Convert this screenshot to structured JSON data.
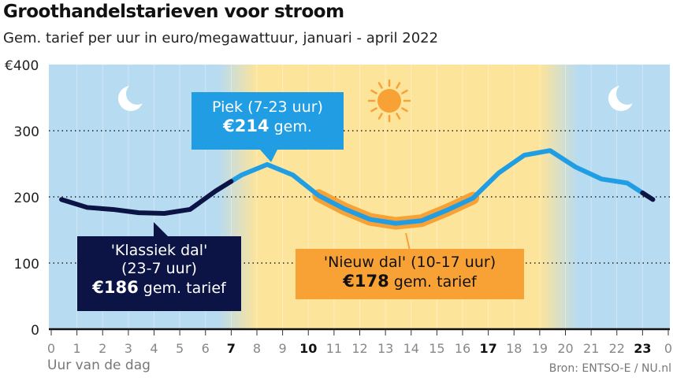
{
  "title": "Groothandelstarieven voor stroom",
  "subtitle": "Gem. tarief per uur in euro/megawattuur, januari - april 2022",
  "source": "Bron: ENTSO-E / NU.nl",
  "icons": {
    "night": "moon-icon",
    "day": "sun-icon"
  },
  "colors": {
    "night_bg": "#b7dbf1",
    "day_bg": "#fde49b",
    "peak": "#219ee3",
    "classic_off_peak": "#0c1446",
    "new_off_peak": "#f8a236"
  },
  "annotations": {
    "peak": {
      "line1": "Piek (7-23 uur)",
      "value": "€214",
      "suffix": "gem."
    },
    "classic": {
      "line1": "'Klassiek dal'",
      "line2": "(23-7 uur)",
      "value": "€186",
      "suffix": "gem. tarief"
    },
    "new": {
      "line1": "'Nieuw dal' (10-17 uur)",
      "value": "€178",
      "suffix": "gem. tarief"
    }
  },
  "chart_data": {
    "type": "line",
    "xlabel": "Uur van de dag",
    "ylabel": "",
    "ylim": [
      0,
      400
    ],
    "xlim": [
      0,
      24
    ],
    "yticks": [
      "0",
      "100",
      "200",
      "300",
      "€400"
    ],
    "xticks": [
      "0",
      "1",
      "2",
      "3",
      "4",
      "5",
      "6",
      "7",
      "8",
      "9",
      "10",
      "11",
      "12",
      "13",
      "14",
      "15",
      "16",
      "17",
      "18",
      "19",
      "20",
      "21",
      "22",
      "23",
      "0"
    ],
    "bold_xticks": [
      "7",
      "10",
      "17",
      "23"
    ],
    "grid": "horizontal dotted",
    "x": [
      0,
      1,
      2,
      3,
      4,
      5,
      6,
      7,
      8,
      9,
      10,
      11,
      12,
      13,
      14,
      15,
      16,
      17,
      18,
      19,
      20,
      21,
      22,
      23
    ],
    "values": [
      196,
      184,
      181,
      176,
      175,
      181,
      209,
      233,
      249,
      233,
      202,
      182,
      166,
      160,
      164,
      180,
      198,
      236,
      263,
      270,
      245,
      227,
      221,
      196
    ]
  }
}
